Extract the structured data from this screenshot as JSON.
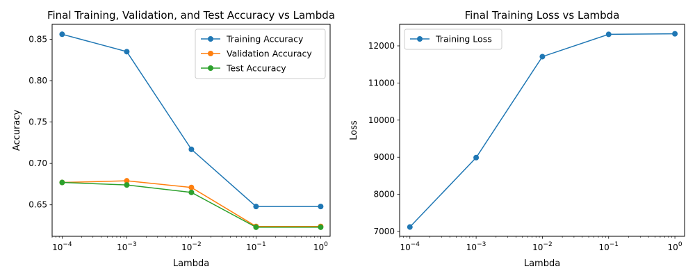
{
  "chart_data": [
    {
      "type": "line",
      "title": "Final Training, Validation, and Test Accuracy vs Lambda",
      "xlabel": "Lambda",
      "ylabel": "Accuracy",
      "xscale": "log",
      "xlim": [
        7e-05,
        1.4
      ],
      "ylim": [
        0.612,
        0.868
      ],
      "x": [
        0.0001,
        0.001,
        0.01,
        0.1,
        1
      ],
      "x_tick_labels": [
        {
          "base": "10",
          "exp": "−4"
        },
        {
          "base": "10",
          "exp": "−3"
        },
        {
          "base": "10",
          "exp": "−2"
        },
        {
          "base": "10",
          "exp": "−1"
        },
        {
          "base": "10",
          "exp": "0"
        }
      ],
      "y_ticks": [
        0.65,
        0.7,
        0.75,
        0.8,
        0.85
      ],
      "y_tick_labels": [
        "0.65",
        "0.70",
        "0.75",
        "0.80",
        "0.85"
      ],
      "grid": false,
      "legend_position": "upper right",
      "series": [
        {
          "name": "Training Accuracy",
          "color": "#1f77b4",
          "values": [
            0.856,
            0.835,
            0.717,
            0.648,
            0.648
          ]
        },
        {
          "name": "Validation Accuracy",
          "color": "#ff7f0e",
          "values": [
            0.677,
            0.679,
            0.671,
            0.624,
            0.624
          ]
        },
        {
          "name": "Test Accuracy",
          "color": "#2ca02c",
          "values": [
            0.677,
            0.674,
            0.665,
            0.623,
            0.623
          ]
        }
      ]
    },
    {
      "type": "line",
      "title": "Final Training Loss vs Lambda",
      "xlabel": "Lambda",
      "ylabel": "Loss",
      "xscale": "log",
      "xlim": [
        7e-05,
        1.4
      ],
      "ylim": [
        6870,
        12580
      ],
      "x": [
        0.0001,
        0.001,
        0.01,
        0.1,
        1
      ],
      "x_tick_labels": [
        {
          "base": "10",
          "exp": "−4"
        },
        {
          "base": "10",
          "exp": "−3"
        },
        {
          "base": "10",
          "exp": "−2"
        },
        {
          "base": "10",
          "exp": "−1"
        },
        {
          "base": "10",
          "exp": "0"
        }
      ],
      "y_ticks": [
        7000,
        8000,
        9000,
        10000,
        11000,
        12000
      ],
      "y_tick_labels": [
        "7000",
        "8000",
        "9000",
        "10000",
        "11000",
        "12000"
      ],
      "grid": false,
      "legend_position": "upper left",
      "series": [
        {
          "name": "Training Loss",
          "color": "#1f77b4",
          "values": [
            7120,
            8990,
            11710,
            12310,
            12325
          ]
        }
      ]
    }
  ]
}
